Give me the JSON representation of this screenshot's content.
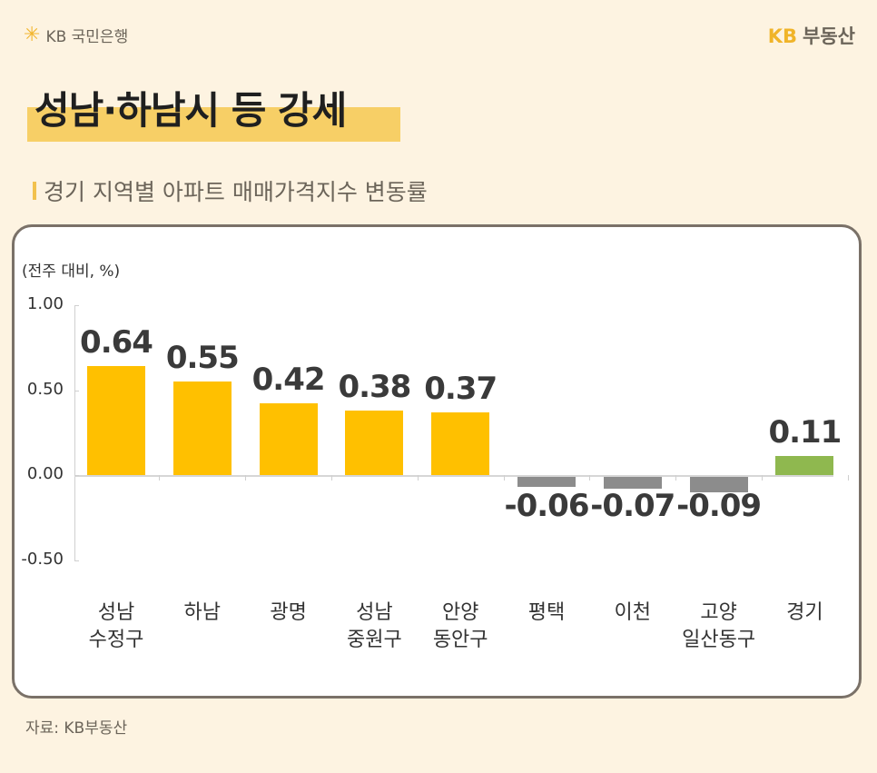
{
  "header": {
    "bank_logo": {
      "icon": "kb-star-icon",
      "text": "KB 국민은행"
    },
    "brand_logo": {
      "kb": "KB",
      "text": "부동산"
    }
  },
  "title": "성남·하남시 등 강세",
  "subtitle": "경기 지역별 아파트 매매가격지수 변동률",
  "source": "자료: KB부동산",
  "colors": {
    "positive": "#ffc000",
    "negative": "#8c8c8c",
    "total": "#8fb84f",
    "background": "#fdf3e1",
    "highlight": "#f7cf66"
  },
  "chart_data": {
    "type": "bar",
    "title": "경기 지역별 아파트 매매가격지수 변동률",
    "ylabel": "(전주 대비, %)",
    "xlabel": "",
    "categories": [
      "성남\n수정구",
      "하남",
      "광명",
      "성남\n중원구",
      "안양\n동안구",
      "평택",
      "이천",
      "고양\n일산동구",
      "경기"
    ],
    "values": [
      0.64,
      0.55,
      0.42,
      0.38,
      0.37,
      -0.06,
      -0.07,
      -0.09,
      0.11
    ],
    "value_labels": [
      "0.64",
      "0.55",
      "0.42",
      "0.38",
      "0.37",
      "-0.06",
      "-0.07",
      "-0.09",
      "0.11"
    ],
    "ylim": [
      -0.5,
      1.0
    ],
    "yticks": [
      "1.00",
      "0.50",
      "0.00",
      "-0.50"
    ],
    "grid": false,
    "legend": null
  }
}
